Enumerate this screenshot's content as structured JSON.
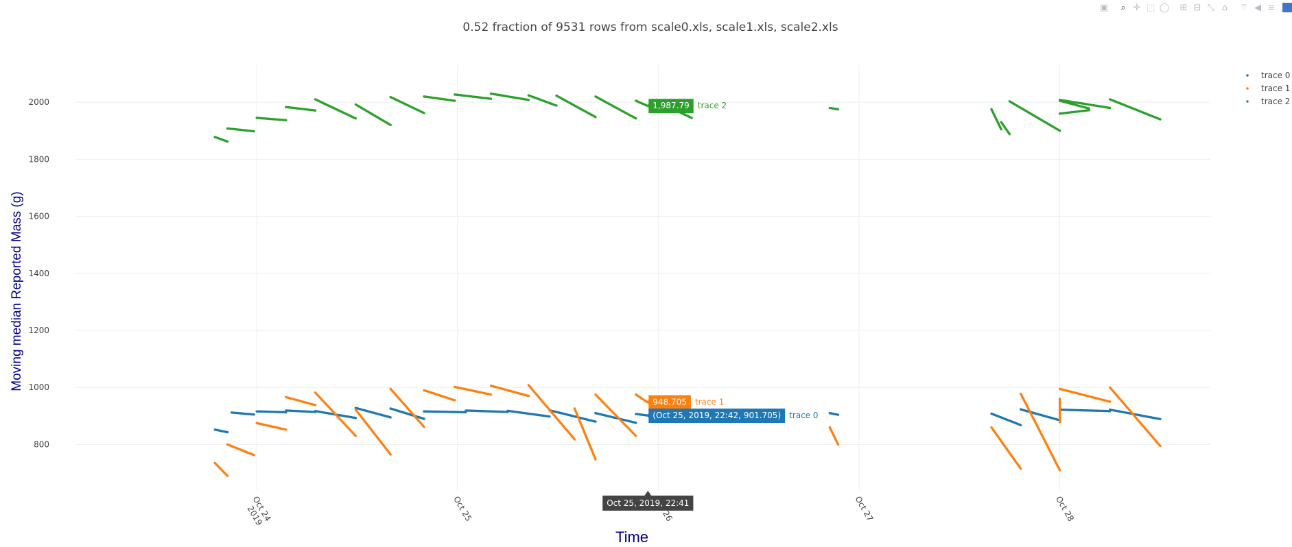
{
  "chart_data": {
    "type": "scatter",
    "title": "0.52 fraction of 9531 rows from scale0.xls, scale1.xls, scale2.xls",
    "xlabel": "Time",
    "ylabel": "Moving median Reported Mass (g)",
    "x_axis": {
      "type": "date",
      "range": [
        "2019-10-23 02:20",
        "2019-10-28 18:00"
      ],
      "ticks": [
        {
          "at": "2019-10-24 00:00",
          "lines": [
            "Oct 24",
            "2019"
          ]
        },
        {
          "at": "2019-10-25 00:00",
          "lines": [
            "Oct 25"
          ]
        },
        {
          "at": "2019-10-26 00:00",
          "lines": [
            "Oct 26"
          ]
        },
        {
          "at": "2019-10-27 00:00",
          "lines": [
            "Oct 27"
          ]
        },
        {
          "at": "2019-10-28 00:00",
          "lines": [
            "Oct 28"
          ]
        }
      ]
    },
    "y_axis": {
      "range": [
        640,
        2130
      ],
      "ticks": [
        800,
        1000,
        1200,
        1400,
        1600,
        1800,
        2000
      ],
      "tick_labels": [
        "800",
        "1000",
        "1200",
        "1400",
        "1600",
        "1800",
        "2000"
      ]
    },
    "grid": true,
    "legend_position": "top-right",
    "series": [
      {
        "name": "trace 0",
        "color": "#1f77b4",
        "segments": [
          {
            "x0": "2019-10-23 19:00",
            "y0": 852,
            "x1": "2019-10-23 20:30",
            "y1": 843
          },
          {
            "x0": "2019-10-23 21:00",
            "y0": 912,
            "x1": "2019-10-23 23:40",
            "y1": 905
          },
          {
            "x0": "2019-10-24 00:00",
            "y0": 916,
            "x1": "2019-10-24 03:30",
            "y1": 913
          },
          {
            "x0": "2019-10-24 03:30",
            "y0": 919,
            "x1": "2019-10-24 07:00",
            "y1": 914
          },
          {
            "x0": "2019-10-24 07:00",
            "y0": 917,
            "x1": "2019-10-24 11:50",
            "y1": 893
          },
          {
            "x0": "2019-10-24 11:50",
            "y0": 928,
            "x1": "2019-10-24 16:00",
            "y1": 895
          },
          {
            "x0": "2019-10-24 16:00",
            "y0": 926,
            "x1": "2019-10-24 20:00",
            "y1": 890
          },
          {
            "x0": "2019-10-24 20:00",
            "y0": 916,
            "x1": "2019-10-25 01:00",
            "y1": 913
          },
          {
            "x0": "2019-10-25 01:00",
            "y0": 919,
            "x1": "2019-10-25 06:00",
            "y1": 914
          },
          {
            "x0": "2019-10-25 06:00",
            "y0": 918,
            "x1": "2019-10-25 11:00",
            "y1": 898
          },
          {
            "x0": "2019-10-25 11:00",
            "y0": 920,
            "x1": "2019-10-25 16:30",
            "y1": 880
          },
          {
            "x0": "2019-10-25 16:30",
            "y0": 910,
            "x1": "2019-10-25 21:20",
            "y1": 876
          },
          {
            "x0": "2019-10-25 21:20",
            "y0": 907,
            "x1": "2019-10-25 22:42",
            "y1": 901.705
          },
          {
            "x0": "2019-10-26 20:30",
            "y0": 910,
            "x1": "2019-10-26 21:30",
            "y1": 904
          },
          {
            "x0": "2019-10-27 15:50",
            "y0": 908,
            "x1": "2019-10-27 19:20",
            "y1": 868
          },
          {
            "x0": "2019-10-27 19:20",
            "y0": 923,
            "x1": "2019-10-28 00:00",
            "y1": 885
          },
          {
            "x0": "2019-10-28 00:00",
            "y0": 922,
            "x1": "2019-10-28 06:00",
            "y1": 917
          },
          {
            "x0": "2019-10-28 06:00",
            "y0": 922,
            "x1": "2019-10-28 12:00",
            "y1": 889
          }
        ]
      },
      {
        "name": "trace 1",
        "color": "#ff7f0e",
        "segments": [
          {
            "x0": "2019-10-23 19:00",
            "y0": 735,
            "x1": "2019-10-23 20:30",
            "y1": 690
          },
          {
            "x0": "2019-10-23 20:30",
            "y0": 800,
            "x1": "2019-10-23 23:40",
            "y1": 763
          },
          {
            "x0": "2019-10-24 00:00",
            "y0": 875,
            "x1": "2019-10-24 03:30",
            "y1": 852
          },
          {
            "x0": "2019-10-24 03:30",
            "y0": 966,
            "x1": "2019-10-24 07:00",
            "y1": 938
          },
          {
            "x0": "2019-10-24 07:00",
            "y0": 982,
            "x1": "2019-10-24 11:50",
            "y1": 830
          },
          {
            "x0": "2019-10-24 11:50",
            "y0": 922,
            "x1": "2019-10-24 16:00",
            "y1": 765
          },
          {
            "x0": "2019-10-24 16:00",
            "y0": 995,
            "x1": "2019-10-24 20:00",
            "y1": 862
          },
          {
            "x0": "2019-10-24 20:00",
            "y0": 990,
            "x1": "2019-10-24 23:40",
            "y1": 955
          },
          {
            "x0": "2019-10-24 23:40",
            "y0": 1002,
            "x1": "2019-10-25 04:00",
            "y1": 975
          },
          {
            "x0": "2019-10-25 04:00",
            "y0": 1006,
            "x1": "2019-10-25 08:30",
            "y1": 970
          },
          {
            "x0": "2019-10-25 08:30",
            "y0": 1008,
            "x1": "2019-10-25 14:00",
            "y1": 818
          },
          {
            "x0": "2019-10-25 14:00",
            "y0": 926,
            "x1": "2019-10-25 16:30",
            "y1": 748
          },
          {
            "x0": "2019-10-25 16:30",
            "y0": 975,
            "x1": "2019-10-25 21:20",
            "y1": 830
          },
          {
            "x0": "2019-10-25 21:20",
            "y0": 975,
            "x1": "2019-10-25 22:41",
            "y1": 948.705
          },
          {
            "x0": "2019-10-26 20:30",
            "y0": 860,
            "x1": "2019-10-26 21:30",
            "y1": 800
          },
          {
            "x0": "2019-10-27 15:50",
            "y0": 860,
            "x1": "2019-10-27 19:20",
            "y1": 715
          },
          {
            "x0": "2019-10-27 19:20",
            "y0": 978,
            "x1": "2019-10-28 00:00",
            "y1": 710
          },
          {
            "x0": "2019-10-28 00:00",
            "y0": 960,
            "x1": "2019-10-28 00:00",
            "y1": 878
          },
          {
            "x0": "2019-10-28 00:00",
            "y0": 995,
            "x1": "2019-10-28 06:00",
            "y1": 950
          },
          {
            "x0": "2019-10-28 06:00",
            "y0": 1000,
            "x1": "2019-10-28 12:00",
            "y1": 795
          }
        ]
      },
      {
        "name": "trace 2",
        "color": "#2ca02c",
        "segments": [
          {
            "x0": "2019-10-23 19:00",
            "y0": 1878,
            "x1": "2019-10-23 20:30",
            "y1": 1862
          },
          {
            "x0": "2019-10-23 20:30",
            "y0": 1908,
            "x1": "2019-10-23 23:40",
            "y1": 1898
          },
          {
            "x0": "2019-10-24 00:00",
            "y0": 1945,
            "x1": "2019-10-24 03:30",
            "y1": 1937
          },
          {
            "x0": "2019-10-24 03:30",
            "y0": 1983,
            "x1": "2019-10-24 07:00",
            "y1": 1971
          },
          {
            "x0": "2019-10-24 07:00",
            "y0": 2010,
            "x1": "2019-10-24 11:50",
            "y1": 1943
          },
          {
            "x0": "2019-10-24 11:50",
            "y0": 1992,
            "x1": "2019-10-24 16:00",
            "y1": 1920
          },
          {
            "x0": "2019-10-24 16:00",
            "y0": 2018,
            "x1": "2019-10-24 20:00",
            "y1": 1962
          },
          {
            "x0": "2019-10-24 20:00",
            "y0": 2020,
            "x1": "2019-10-24 23:40",
            "y1": 2005
          },
          {
            "x0": "2019-10-24 23:40",
            "y0": 2027,
            "x1": "2019-10-25 04:00",
            "y1": 2012
          },
          {
            "x0": "2019-10-25 04:00",
            "y0": 2030,
            "x1": "2019-10-25 08:30",
            "y1": 2008
          },
          {
            "x0": "2019-10-25 08:30",
            "y0": 2024,
            "x1": "2019-10-25 11:50",
            "y1": 1988
          },
          {
            "x0": "2019-10-25 11:50",
            "y0": 2023,
            "x1": "2019-10-25 16:30",
            "y1": 1948
          },
          {
            "x0": "2019-10-25 16:30",
            "y0": 2020,
            "x1": "2019-10-25 21:20",
            "y1": 1943
          },
          {
            "x0": "2019-10-25 21:20",
            "y0": 2005,
            "x1": "2019-10-25 22:40",
            "y1": 1987.79
          },
          {
            "x0": "2019-10-26 00:00",
            "y0": 2000,
            "x1": "2019-10-26 04:00",
            "y1": 1945
          },
          {
            "x0": "2019-10-26 20:30",
            "y0": 1980,
            "x1": "2019-10-26 21:30",
            "y1": 1975
          },
          {
            "x0": "2019-10-27 15:50",
            "y0": 1975,
            "x1": "2019-10-27 17:00",
            "y1": 1905
          },
          {
            "x0": "2019-10-27 17:00",
            "y0": 1930,
            "x1": "2019-10-27 18:00",
            "y1": 1888
          },
          {
            "x0": "2019-10-27 18:00",
            "y0": 2003,
            "x1": "2019-10-28 00:00",
            "y1": 1900
          },
          {
            "x0": "2019-10-28 00:00",
            "y0": 2005,
            "x1": "2019-10-28 03:30",
            "y1": 1978
          },
          {
            "x0": "2019-10-28 03:30",
            "y0": 1972,
            "x1": "2019-10-28 00:00",
            "y1": 1960
          },
          {
            "x0": "2019-10-28 00:00",
            "y0": 2008,
            "x1": "2019-10-28 06:00",
            "y1": 1980
          },
          {
            "x0": "2019-10-28 06:00",
            "y0": 2010,
            "x1": "2019-10-28 12:00",
            "y1": 1940
          }
        ]
      }
    ],
    "hover": {
      "x_label": "Oct 25, 2019, 22:41",
      "labels": [
        {
          "series": "trace 2",
          "text": "1,987.79",
          "y": 1987.79,
          "color": "#2ca02c"
        },
        {
          "series": "trace 1",
          "text": "948.705",
          "y": 948.705,
          "color": "#ff7f0e"
        },
        {
          "series": "trace 0",
          "text": "(Oct 25, 2019, 22:42, 901.705)",
          "y": 901.705,
          "color": "#1f77b4"
        }
      ],
      "x": "2019-10-25 22:41"
    }
  },
  "modebar": {
    "buttons": [
      {
        "name": "camera-icon",
        "glyph": "▣",
        "group": 1
      },
      {
        "name": "zoom-icon",
        "glyph": "⌕",
        "group": 2,
        "active": true
      },
      {
        "name": "pan-icon",
        "glyph": "✛",
        "group": 2
      },
      {
        "name": "box-select-icon",
        "glyph": "⬚",
        "group": 2
      },
      {
        "name": "lasso-select-icon",
        "glyph": "◯",
        "group": 2
      },
      {
        "name": "zoom-in-icon",
        "glyph": "⊞",
        "group": 3
      },
      {
        "name": "zoom-out-icon",
        "glyph": "⊟",
        "group": 3
      },
      {
        "name": "autoscale-icon",
        "glyph": "⤡",
        "group": 3
      },
      {
        "name": "home-icon",
        "glyph": "⌂",
        "group": 3
      },
      {
        "name": "spike-lines-icon",
        "glyph": "⫪",
        "group": 4
      },
      {
        "name": "hover-closest-icon",
        "glyph": "◀",
        "group": 4
      },
      {
        "name": "hover-compare-icon",
        "glyph": "≡",
        "group": 4
      }
    ]
  }
}
